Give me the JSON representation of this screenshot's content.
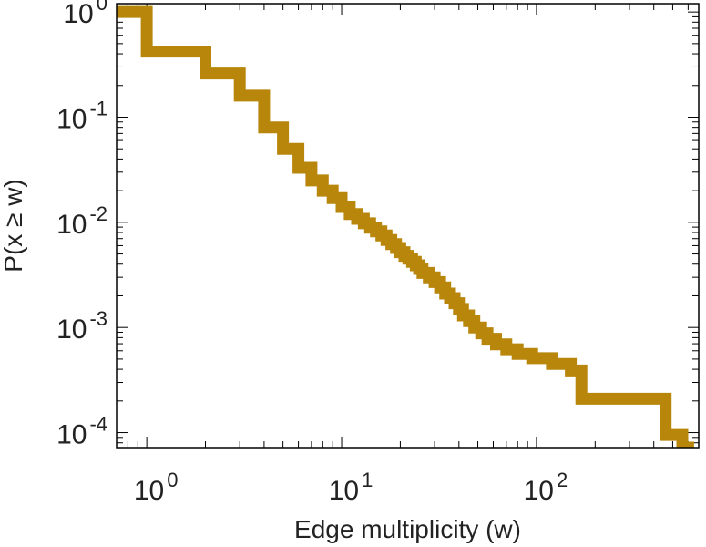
{
  "chart_data": {
    "type": "line",
    "step": true,
    "title": "",
    "xlabel": "Edge multiplicity (w)",
    "ylabel": "P(x ≥ w)",
    "x_scale": "log",
    "y_scale": "log",
    "xlim": [
      0.7,
      680
    ],
    "ylim": [
      7.2e-05,
      1.2
    ],
    "grid": false,
    "line_color": "#b8860b",
    "x_ticks": [
      {
        "base": "10",
        "exp": "0",
        "value": 1
      },
      {
        "base": "10",
        "exp": "1",
        "value": 10
      },
      {
        "base": "10",
        "exp": "2",
        "value": 100
      }
    ],
    "y_ticks": [
      {
        "base": "10",
        "exp": "0",
        "value": 1
      },
      {
        "base": "10",
        "exp": "-1",
        "value": 0.1
      },
      {
        "base": "10",
        "exp": "-2",
        "value": 0.01
      },
      {
        "base": "10",
        "exp": "-3",
        "value": 0.001
      },
      {
        "base": "10",
        "exp": "-4",
        "value": 0.0001
      }
    ],
    "series": [
      {
        "x": [
          0.7,
          1,
          2,
          3,
          4,
          5,
          6,
          7,
          8,
          9,
          10,
          11,
          12,
          13,
          14,
          15,
          16,
          17,
          18,
          19,
          20,
          21,
          22,
          23,
          24,
          25,
          26,
          28,
          30,
          32,
          34,
          36,
          38,
          40,
          42,
          45,
          48,
          52,
          56,
          62,
          70,
          80,
          95,
          120,
          150,
          170,
          460,
          560,
          600
        ],
        "y": [
          1.0,
          0.42,
          0.26,
          0.16,
          0.08,
          0.05,
          0.033,
          0.025,
          0.02,
          0.017,
          0.014,
          0.012,
          0.0108,
          0.0098,
          0.0089,
          0.0082,
          0.0075,
          0.0068,
          0.0062,
          0.0057,
          0.0052,
          0.0048,
          0.0045,
          0.0042,
          0.0039,
          0.0036,
          0.0033,
          0.003,
          0.0027,
          0.0024,
          0.0021,
          0.0019,
          0.0017,
          0.0015,
          0.0013,
          0.00115,
          0.001,
          0.00088,
          0.00078,
          0.00069,
          0.00062,
          0.00056,
          0.00051,
          0.00045,
          0.00039,
          0.00021,
          9.5e-05,
          7.2e-05,
          7.2e-05
        ]
      }
    ]
  }
}
